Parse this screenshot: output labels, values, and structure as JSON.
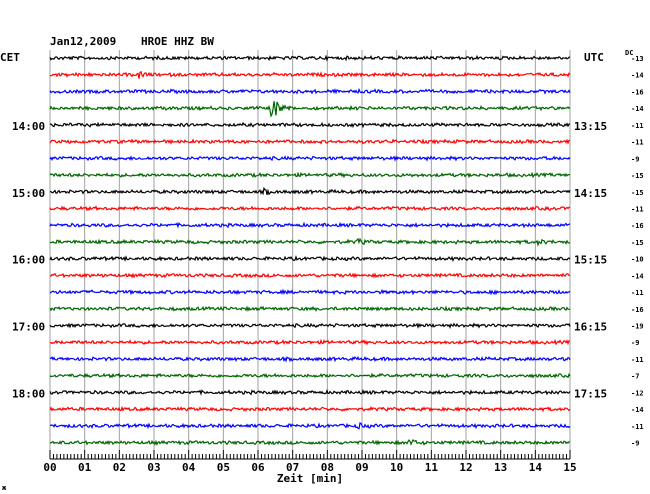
{
  "header": {
    "date": "Jan12,2009",
    "station": "HROE HHZ BW",
    "left_zone": "CET",
    "right_zone": "UTC",
    "dc_label": "DC"
  },
  "footer": {
    "xlabel": "Zeit [min]",
    "corner_mark": "ж"
  },
  "chart_data": {
    "type": "line",
    "title": "Jan12,2009   HROE HHZ BW",
    "xlabel": "Zeit [min]",
    "xlim": [
      0,
      15
    ],
    "x_ticks": [
      "00",
      "01",
      "02",
      "03",
      "04",
      "05",
      "06",
      "07",
      "08",
      "09",
      "10",
      "11",
      "12",
      "13",
      "14",
      "15"
    ],
    "grid": true,
    "trace_colors": [
      "#000000",
      "#ff0000",
      "#0000ff",
      "#006400"
    ],
    "left_time_labels": [
      {
        "row": 4,
        "label": "14:00"
      },
      {
        "row": 8,
        "label": "15:00"
      },
      {
        "row": 12,
        "label": "16:00"
      },
      {
        "row": 16,
        "label": "17:00"
      },
      {
        "row": 20,
        "label": "18:00"
      }
    ],
    "right_time_labels": [
      {
        "row": 4,
        "label": "13:15"
      },
      {
        "row": 8,
        "label": "14:15"
      },
      {
        "row": 12,
        "label": "15:15"
      },
      {
        "row": 16,
        "label": "16:15"
      },
      {
        "row": 20,
        "label": "17:15"
      }
    ],
    "dc_offsets": [
      "-13",
      "-14",
      "-16",
      "-14",
      "-11",
      "-11",
      "-9",
      "-15",
      "-15",
      "-11",
      "-16",
      "-15",
      "-10",
      "-14",
      "-11",
      "-16",
      "-19",
      "-9",
      "-11",
      "-7",
      "-12",
      "-14",
      "-11",
      "-9"
    ],
    "events": [
      {
        "row": 1,
        "minute": 2.6,
        "amplitude": 3
      },
      {
        "row": 3,
        "minute": 6.4,
        "amplitude": 16
      },
      {
        "row": 8,
        "minute": 6.2,
        "amplitude": 2
      },
      {
        "row": 11,
        "minute": 8.9,
        "amplitude": 2
      },
      {
        "row": 11,
        "minute": 14.1,
        "amplitude": 2
      },
      {
        "row": 22,
        "minute": 8.9,
        "amplitude": 2
      },
      {
        "row": 23,
        "minute": 10.4,
        "amplitude": 3
      }
    ]
  }
}
